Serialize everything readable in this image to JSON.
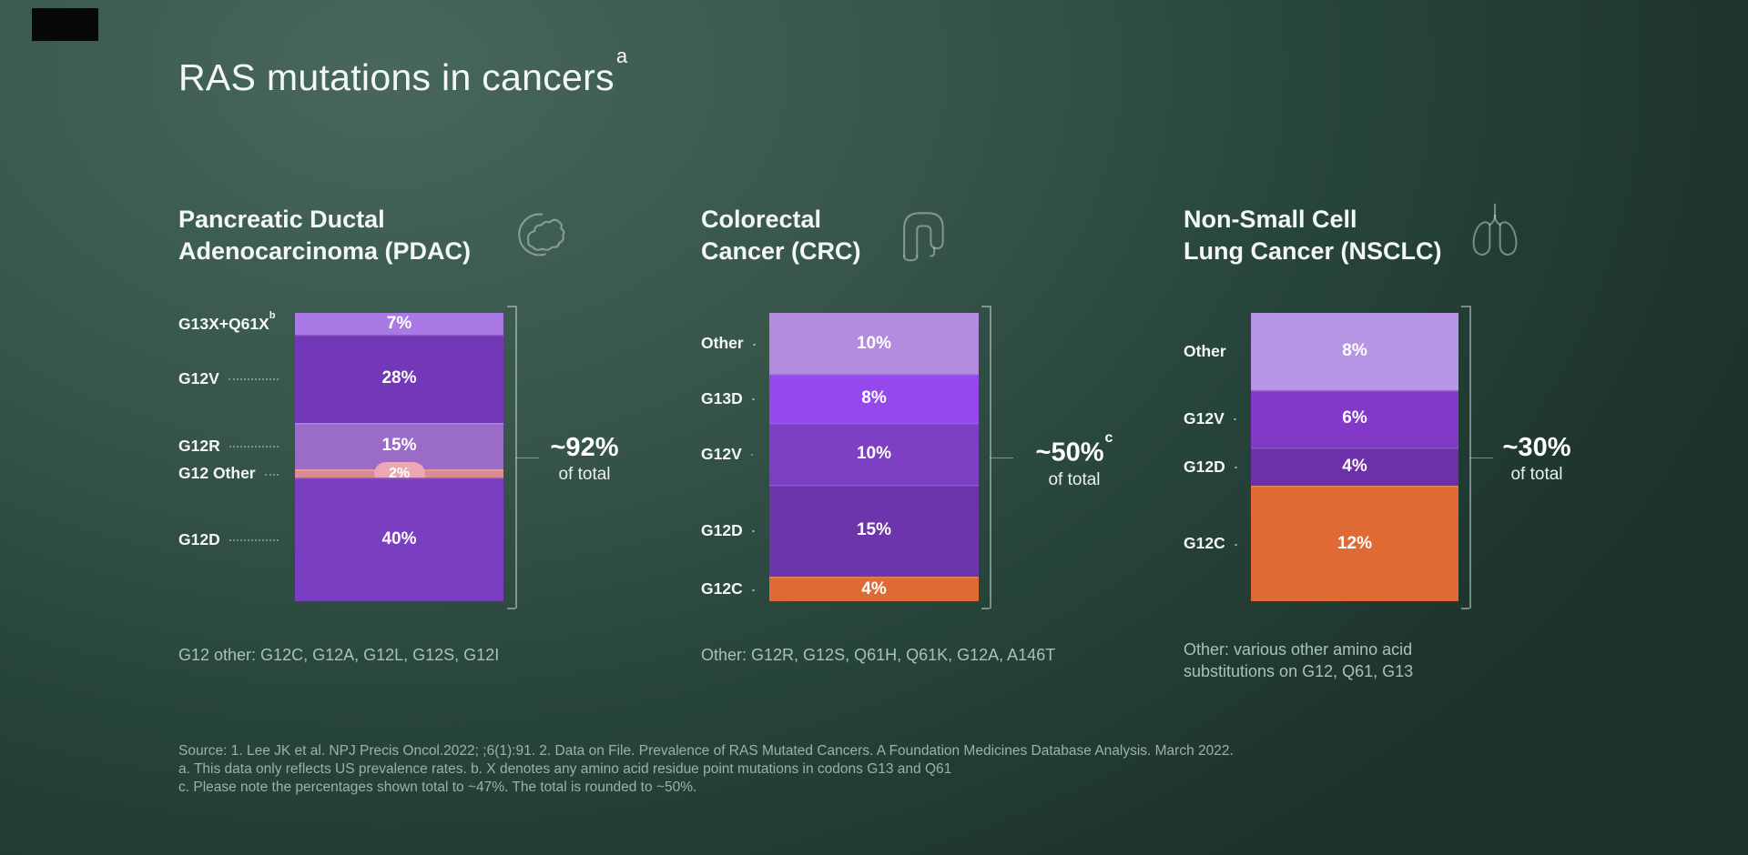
{
  "title": {
    "text": "RAS mutations in cancers",
    "sup": "a"
  },
  "colors": {
    "background_center": "#47665d",
    "background_edge": "#1c312a",
    "orange": "#e06a33",
    "salmon_strip": "#dc8b93",
    "badge_pink": "#eba8b4",
    "text_primary": "#f4f8f5",
    "text_muted": "#a9c1b7",
    "text_source": "#9cb2a8"
  },
  "chart_data": [
    {
      "type": "bar",
      "variant": "stacked-vertical",
      "title": "Pancreatic Ductal Adenocarcinoma (PDAC)",
      "title_lines": [
        "Pancreatic Ductal",
        "Adenocarcinoma (PDAC)"
      ],
      "icon": "pancreas-icon",
      "total": {
        "label": "~92%",
        "sup": "",
        "sub": "of total"
      },
      "footnote": "G12 other: G12C, G12A, G12L, G12S, G12I",
      "segments": [
        {
          "label": "G13X+Q61X",
          "sup": "b",
          "value": 7,
          "display": "7%",
          "color": "#aa7ae4"
        },
        {
          "label": "G12V",
          "value": 28,
          "display": "28%",
          "color": "#7238b8"
        },
        {
          "label": "G12R",
          "value": 15,
          "display": "15%",
          "color": "#9a6cc8"
        },
        {
          "label": "G12 Other",
          "value": 2,
          "display": "2%",
          "color": "#dc8b93",
          "badge": true,
          "badge_color": "#eba8b4"
        },
        {
          "label": "G12D",
          "value": 40,
          "display": "40%",
          "color": "#7a3ec0"
        }
      ]
    },
    {
      "type": "bar",
      "variant": "stacked-vertical",
      "title": "Colorectal Cancer (CRC)",
      "title_lines": [
        "Colorectal",
        "Cancer (CRC)"
      ],
      "icon": "colon-icon",
      "total": {
        "label": "~50%",
        "sup": "c",
        "sub": "of total"
      },
      "footnote": "Other: G12R, G12S, Q61H, Q61K, G12A, A146T",
      "segments": [
        {
          "label": "Other",
          "value": 10,
          "display": "10%",
          "color": "#b28ce0"
        },
        {
          "label": "G13D",
          "value": 8,
          "display": "8%",
          "color": "#9549ec"
        },
        {
          "label": "G12V",
          "value": 10,
          "display": "10%",
          "color": "#7d3fc4"
        },
        {
          "label": "G12D",
          "value": 15,
          "display": "15%",
          "color": "#6d35ac"
        },
        {
          "label": "G12C",
          "value": 4,
          "display": "4%",
          "color": "#e06a33"
        }
      ]
    },
    {
      "type": "bar",
      "variant": "stacked-vertical",
      "title": "Non-Small Cell Lung Cancer (NSCLC)",
      "title_lines": [
        "Non-Small Cell",
        "Lung Cancer (NSCLC)"
      ],
      "icon": "lungs-icon",
      "total": {
        "label": "~30%",
        "sup": "",
        "sub": "of total"
      },
      "footnote": "Other: various other amino acid substitutions on G12, Q61, G13",
      "segments": [
        {
          "label": "Other",
          "value": 8,
          "display": "8%",
          "color": "#b696e4"
        },
        {
          "label": "G12V",
          "value": 6,
          "display": "6%",
          "color": "#8339c8"
        },
        {
          "label": "G12D",
          "value": 4,
          "display": "4%",
          "color": "#6c30aa"
        },
        {
          "label": "G12C",
          "value": 12,
          "display": "12%",
          "color": "#e06a33"
        }
      ]
    }
  ],
  "source": {
    "lines": [
      "Source: 1. Lee JK et al. NPJ Precis Oncol.2022; ;6(1):91.  2. Data on File. Prevalence of RAS Mutated Cancers. A Foundation Medicines Database Analysis. March 2022.",
      "a. This data only reflects US prevalence rates. b. X denotes any amino acid residue point mutations in codons G13 and Q61",
      "c. Please note the percentages shown total to ~47%. The total is rounded to ~50%."
    ]
  }
}
